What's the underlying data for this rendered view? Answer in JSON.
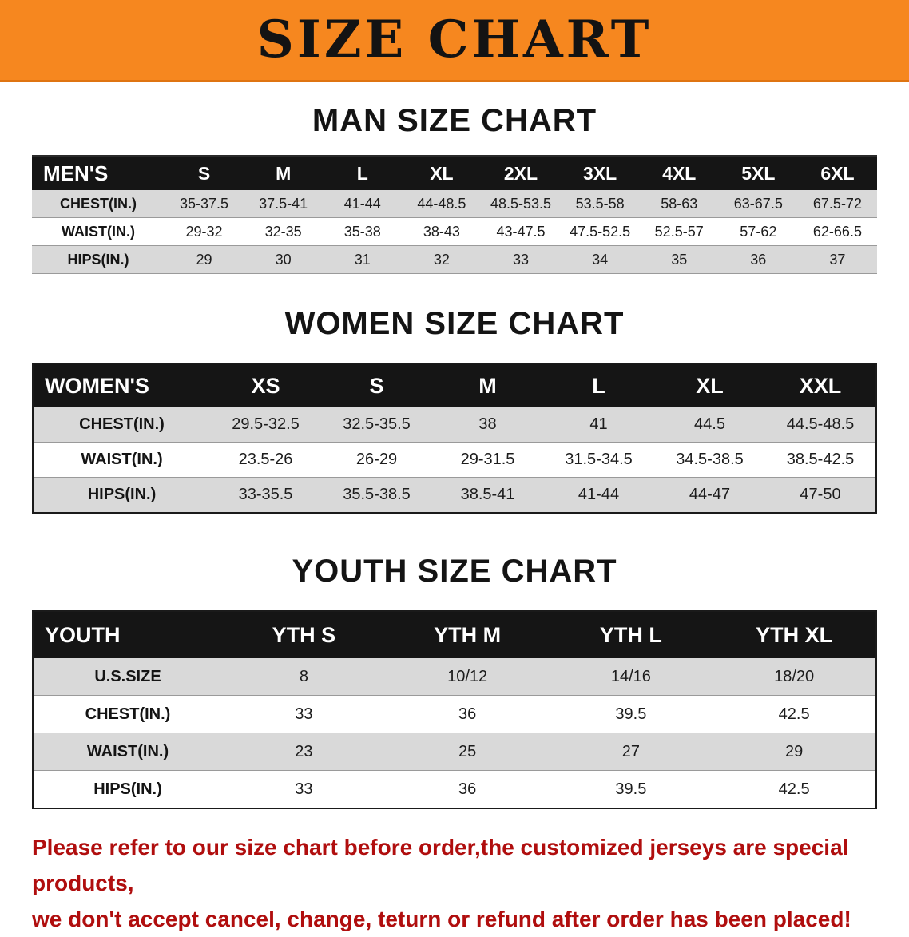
{
  "banner": {
    "title": "SIZE CHART",
    "bg_color": "#F6871F"
  },
  "sections": [
    {
      "heading": "MAN SIZE CHART",
      "table": {
        "header": [
          "MEN'S",
          "S",
          "M",
          "L",
          "XL",
          "2XL",
          "3XL",
          "4XL",
          "5XL",
          "6XL"
        ],
        "rows": [
          [
            "CHEST(IN.)",
            "35-37.5",
            "37.5-41",
            "41-44",
            "44-48.5",
            "48.5-53.5",
            "53.5-58",
            "58-63",
            "63-67.5",
            "67.5-72"
          ],
          [
            "WAIST(IN.)",
            "29-32",
            "32-35",
            "35-38",
            "38-43",
            "43-47.5",
            "47.5-52.5",
            "52.5-57",
            "57-62",
            "62-66.5"
          ],
          [
            "HIPS(IN.)",
            "29",
            "30",
            "31",
            "32",
            "33",
            "34",
            "35",
            "36",
            "37"
          ]
        ]
      }
    },
    {
      "heading": "WOMEN SIZE CHART",
      "table": {
        "header": [
          "WOMEN'S",
          "XS",
          "S",
          "M",
          "L",
          "XL",
          "XXL"
        ],
        "rows": [
          [
            "CHEST(IN.)",
            "29.5-32.5",
            "32.5-35.5",
            "38",
            "41",
            "44.5",
            "44.5-48.5"
          ],
          [
            "WAIST(IN.)",
            "23.5-26",
            "26-29",
            "29-31.5",
            "31.5-34.5",
            "34.5-38.5",
            "38.5-42.5"
          ],
          [
            "HIPS(IN.)",
            "33-35.5",
            "35.5-38.5",
            "38.5-41",
            "41-44",
            "44-47",
            "47-50"
          ]
        ]
      }
    },
    {
      "heading": "YOUTH SIZE CHART",
      "table": {
        "header": [
          "YOUTH",
          "YTH S",
          "YTH M",
          "YTH L",
          "YTH XL"
        ],
        "rows": [
          [
            "U.S.SIZE",
            "8",
            "10/12",
            "14/16",
            "18/20"
          ],
          [
            "CHEST(IN.)",
            "33",
            "36",
            "39.5",
            "42.5"
          ],
          [
            "WAIST(IN.)",
            "23",
            "25",
            "27",
            "29"
          ],
          [
            "HIPS(IN.)",
            "33",
            "36",
            "39.5",
            "42.5"
          ]
        ]
      }
    }
  ],
  "disclaimer": {
    "line1": "Please refer to our size chart before order,the customized jerseys are special products,",
    "line2": "we don't accept cancel, change, teturn or refund after order has been placed!"
  },
  "colors": {
    "accent_orange": "#F6871F",
    "table_header_black": "#151515",
    "row_stripe_gray": "#D9D9D9",
    "note_red": "#B00E0E"
  }
}
